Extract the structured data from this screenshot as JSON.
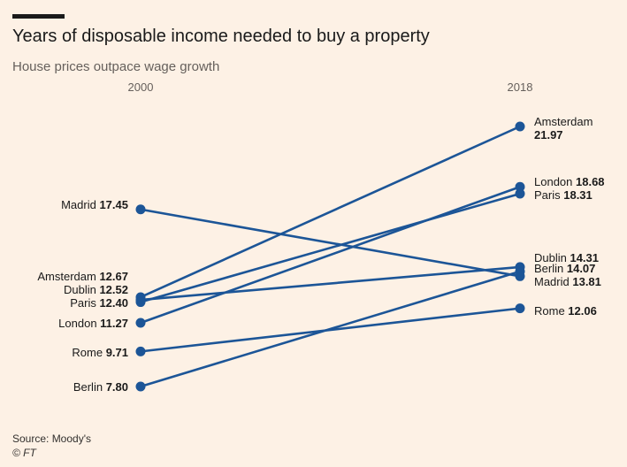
{
  "title": "Years of disposable income needed to buy a property",
  "subtitle": "House prices outpace wage growth",
  "source": "Source: Moody's",
  "credit": "© FT",
  "colors": {
    "line": "#1c5597",
    "background": "#fdf1e5"
  },
  "chart_data": {
    "type": "line",
    "chart_form": "slope",
    "x": [
      "2000",
      "2018"
    ],
    "series": [
      {
        "name": "Amsterdam",
        "values": [
          12.67,
          21.97
        ]
      },
      {
        "name": "Dublin",
        "values": [
          12.52,
          14.31
        ]
      },
      {
        "name": "Paris",
        "values": [
          12.4,
          18.31
        ]
      },
      {
        "name": "London",
        "values": [
          11.27,
          18.68
        ]
      },
      {
        "name": "Rome",
        "values": [
          9.71,
          12.06
        ]
      },
      {
        "name": "Berlin",
        "values": [
          7.8,
          14.07
        ]
      },
      {
        "name": "Madrid",
        "values": [
          17.45,
          13.81
        ]
      }
    ],
    "labels_2000": [
      {
        "name": "Madrid",
        "value": "17.45"
      },
      {
        "name": "Amsterdam",
        "value": "12.67"
      },
      {
        "name": "Dublin",
        "value": "12.52"
      },
      {
        "name": "Paris",
        "value": "12.40"
      },
      {
        "name": "London",
        "value": "11.27"
      },
      {
        "name": "Rome",
        "value": "9.71"
      },
      {
        "name": "Berlin",
        "value": "7.80"
      }
    ],
    "labels_2018": [
      {
        "name": "Amsterdam",
        "value": "21.97",
        "stacked": true
      },
      {
        "name": "London",
        "value": "18.68"
      },
      {
        "name": "Paris",
        "value": "18.31"
      },
      {
        "name": "Dublin",
        "value": "14.31"
      },
      {
        "name": "Berlin",
        "value": "14.07"
      },
      {
        "name": "Madrid",
        "value": "13.81"
      },
      {
        "name": "Rome",
        "value": "12.06"
      }
    ],
    "grid": false,
    "legend": "none (direct labels)"
  }
}
